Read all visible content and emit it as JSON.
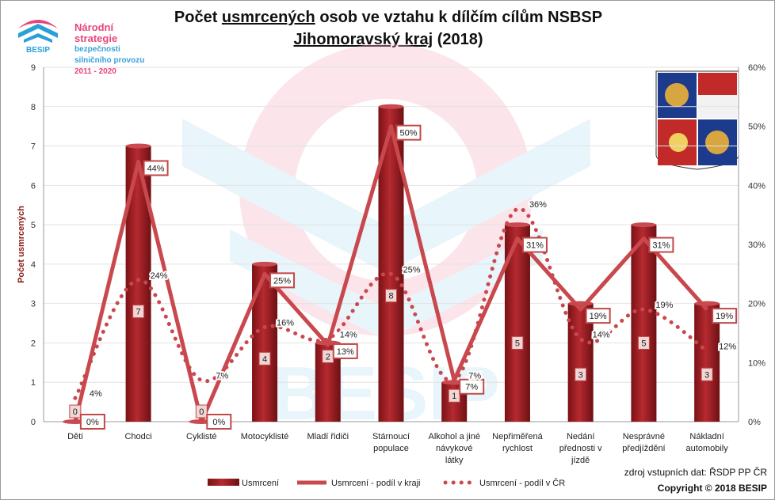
{
  "logo": {
    "line1": "Národní strategie",
    "line2": "bezpečnosti",
    "line3": "silničního provozu",
    "line4": "2011 - 2020",
    "brand": "BESIP"
  },
  "title": {
    "part1": "Počet ",
    "part2": "usmrcených",
    "part3": " osob ve vztahu k dílčím cílům NSBSP",
    "line2_main": "Jihomoravský kraj",
    "line2_rest": " (2018)"
  },
  "watermark": "BESIP",
  "footer": {
    "source": "zdroj vstupních dat: ŘSDP PP ČR",
    "copyright": "Copyright © 2018  BESIP"
  },
  "colors": {
    "bar": "#b52a30",
    "line": "#c9484d",
    "dotted": "#c9484d",
    "label_border": "#c04848"
  },
  "chart_data": {
    "type": "bar",
    "ylabel": "Počet usmrcených",
    "ylim": [
      0,
      9
    ],
    "y2lim": [
      0,
      60
    ],
    "yticks": [
      "0",
      "1",
      "2",
      "3",
      "4",
      "5",
      "6",
      "7",
      "8",
      "9"
    ],
    "y2ticks": [
      "0%",
      "10%",
      "20%",
      "30%",
      "40%",
      "50%",
      "60%"
    ],
    "categories": [
      [
        "Děti"
      ],
      [
        "Chodci"
      ],
      [
        "Cyklisté"
      ],
      [
        "Motocyklisté"
      ],
      [
        "Mladí řidiči"
      ],
      [
        "Stárnoucí",
        "populace"
      ],
      [
        "Alkohol a jiné",
        "návykové",
        "látky"
      ],
      [
        "Nepřiměřená",
        "rychlost"
      ],
      [
        "Nedání",
        "přednosti v",
        "jízdě"
      ],
      [
        "Nesprávné",
        "předjíždění"
      ],
      [
        "Nákladní",
        "automobily"
      ]
    ],
    "series": [
      {
        "name": "Usmrcení",
        "kind": "bar",
        "values": [
          0,
          7,
          0,
          4,
          2,
          8,
          1,
          5,
          3,
          5,
          3
        ],
        "labels": [
          "0",
          "7",
          "0",
          "4",
          "2",
          "8",
          "1",
          "5",
          "3",
          "5",
          "3"
        ]
      },
      {
        "name": "Usmrcení - podíl v kraji",
        "kind": "line",
        "values": [
          0,
          44,
          0,
          25,
          13,
          50,
          7,
          31,
          19,
          31,
          19
        ],
        "labels": [
          "0%",
          "44%",
          "0%",
          "25%",
          "13%",
          "50%",
          "7%",
          "31%",
          "19%",
          "31%",
          "19%"
        ]
      },
      {
        "name": "Usmrcení - podíl v ČR",
        "kind": "dotted",
        "values": [
          4,
          24,
          7,
          16,
          14,
          25,
          7,
          36,
          14,
          19,
          12
        ],
        "labels": [
          "4%",
          "24%",
          "7%",
          "16%",
          "14%",
          "25%",
          "7%",
          "36%",
          "14%",
          "19%",
          "12%"
        ]
      }
    ]
  }
}
